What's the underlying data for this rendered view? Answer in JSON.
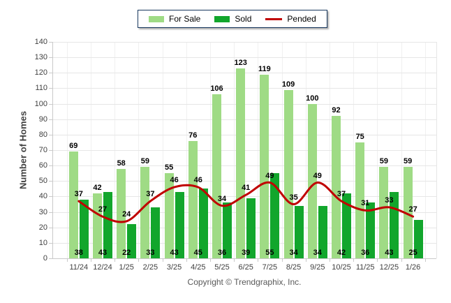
{
  "legend": {
    "items": [
      {
        "label": "For Sale",
        "swatch": "light-green-swatch"
      },
      {
        "label": "Sold",
        "swatch": "dark-green-swatch"
      },
      {
        "label": "Pended",
        "swatch": "red-line-swatch"
      }
    ]
  },
  "axes": {
    "y_title": "Number of Homes",
    "y_ticks": [
      0,
      10,
      20,
      30,
      40,
      50,
      60,
      70,
      80,
      90,
      100,
      110,
      120,
      130,
      140
    ]
  },
  "footer": {
    "copyright": "Copyright © Trendgraphix, Inc."
  },
  "colors": {
    "for_sale": "#9FDB85",
    "sold": "#12A62C",
    "pended": "#C00000",
    "grid_h": "#E6E6E6",
    "grid_v": "#F0F0F0",
    "axis": "#C9C9C9",
    "tick_text": "#404040",
    "data_label": "#000000",
    "footer_text": "#595959",
    "legend_border": "#17375E",
    "background": "#FFFFFF"
  },
  "chart_data": {
    "type": "bar",
    "title": "",
    "xlabel": "",
    "ylabel": "Number of Homes",
    "ylim": [
      0,
      140
    ],
    "y_step": 10,
    "grid": true,
    "legend_position": "top",
    "categories": [
      "11/24",
      "12/24",
      "1/25",
      "2/25",
      "3/25",
      "4/25",
      "5/25",
      "6/25",
      "7/25",
      "8/25",
      "9/25",
      "10/25",
      "11/25",
      "12/25",
      "1/26"
    ],
    "series": [
      {
        "name": "For Sale",
        "type": "bar",
        "color": "#9FDB85",
        "values": [
          69,
          42,
          58,
          59,
          55,
          76,
          106,
          123,
          119,
          109,
          100,
          92,
          75,
          59,
          59
        ]
      },
      {
        "name": "Sold",
        "type": "bar",
        "color": "#12A62C",
        "values": [
          38,
          43,
          22,
          33,
          43,
          45,
          36,
          39,
          55,
          34,
          34,
          42,
          36,
          43,
          25
        ]
      },
      {
        "name": "Pended",
        "type": "line",
        "color": "#C00000",
        "values": [
          37,
          27,
          24,
          37,
          46,
          46,
          34,
          41,
          49,
          35,
          49,
          37,
          31,
          33,
          27
        ]
      }
    ]
  }
}
